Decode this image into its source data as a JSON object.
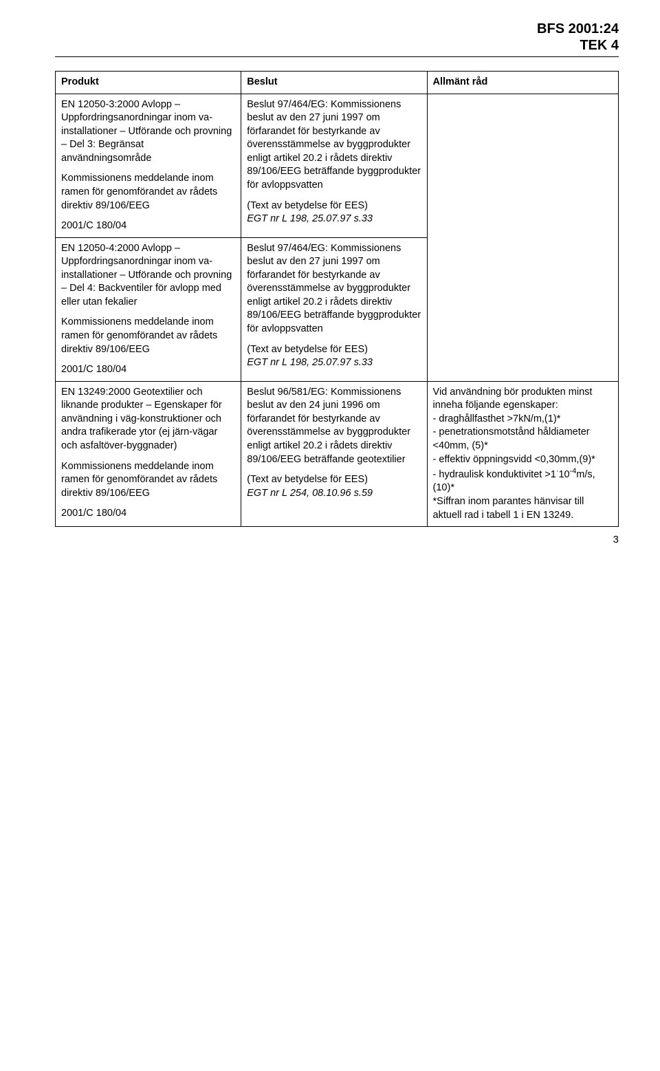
{
  "header": {
    "line1": "BFS 2001:24",
    "line2": "TEK 4"
  },
  "table": {
    "headers": {
      "produkt": "Produkt",
      "beslut": "Beslut",
      "rad": "Allmänt råd"
    },
    "rows": [
      {
        "produkt": {
          "p1": "EN 12050-3:2000 Avlopp – Uppfordringsanordningar inom va-installationer – Utförande och provning – Del 3: Begränsat användningsområde",
          "p2": "Kommissionens meddelande inom ramen för genomförandet av rådets direktiv 89/106/EEG",
          "p3": "2001/C 180/04"
        },
        "beslut": {
          "p1": "Beslut 97/464/EG: Kommissionens beslut av den 27 juni 1997 om förfarandet för bestyrkande av överensstämmelse av byggprodukter enligt artikel 20.2 i rådets direktiv 89/106/EEG beträffande byggprodukter för avloppsvatten",
          "p2a": "(Text av betydelse för EES)",
          "p2b": "EGT nr L 198, 25.07.97 s.33"
        },
        "rad": ""
      },
      {
        "produkt": {
          "p1": "EN 12050-4:2000 Avlopp – Uppfordringsanordningar inom va-installationer – Utförande och provning – Del 4: Backventiler för avlopp med eller utan fekalier",
          "p2": "Kommissionens meddelande inom ramen för genomförandet av rådets direktiv 89/106/EEG",
          "p3": "2001/C 180/04"
        },
        "beslut": {
          "p1": "Beslut 97/464/EG: Kommissionens beslut av den 27 juni 1997 om förfarandet för bestyrkande av överensstämmelse av byggprodukter enligt artikel 20.2 i rådets direktiv 89/106/EEG beträffande byggprodukter för avloppsvatten",
          "p2a": "(Text av betydelse för EES)",
          "p2b": "EGT nr L 198, 25.07.97 s.33"
        },
        "rad": ""
      },
      {
        "produkt": {
          "p1": "EN 13249:2000 Geotextilier och liknande produkter – Egenskaper för användning i väg-konstruktioner och andra trafikerade ytor (ej järn-vägar och asfaltöver-byggnader)",
          "p2": "Kommissionens meddelande inom ramen för genomförandet av rådets direktiv 89/106/EEG",
          "p3": "2001/C 180/04"
        },
        "beslut": {
          "p1": "Beslut 96/581/EG: Kommissionens beslut av den 24 juni 1996 om förfarandet för bestyrkande av överensstämmelse av byggprodukter enligt artikel 20.2 i rådets direktiv 89/106/EEG beträffande geotextilier",
          "p2a": "(Text av betydelse för EES)",
          "p2b": "EGT nr L 254, 08.10.96 s.59"
        },
        "rad": {
          "p1": "Vid användning bör produkten minst inneha följande egenskaper:",
          "l1": "- draghållfasthet >7kN/m,(1)*",
          "l2": "- penetrationsmotstånd håldiameter <40mm, (5)*",
          "l3": "- effektiv öppningsvidd <0,30mm,(9)*",
          "l4a": "- hydraulisk konduktivitet >1",
          "l4b": "·",
          "l4c": "10",
          "l4d": "-4",
          "l4e": "m/s, (10)*",
          "p2": "*Siffran inom parantes hänvisar till aktuell rad i tabell 1 i EN 13249."
        }
      }
    ]
  },
  "pageNumber": "3"
}
